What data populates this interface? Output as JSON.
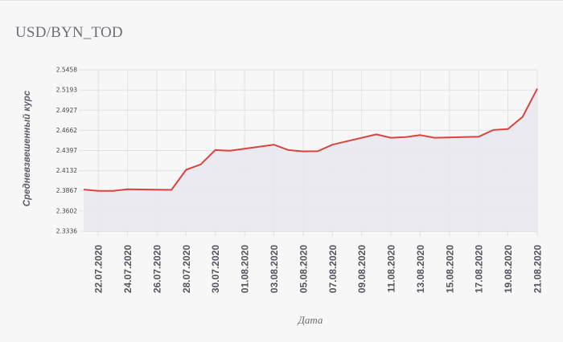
{
  "chart_data": {
    "type": "area",
    "title": "USD/BYN_TOD",
    "xlabel": "Дата",
    "ylabel": "Средневзвешенный курс",
    "ylim": [
      2.3336,
      2.5458
    ],
    "y_ticks": [
      "2.5458",
      "2.5193",
      "2.4927",
      "2.4662",
      "2.4397",
      "2.4132",
      "2.3867",
      "2.3602",
      "2.3336"
    ],
    "x_ticks": [
      "22.07.2020",
      "24.07.2020",
      "26.07.2020",
      "28.07.2020",
      "30.07.2020",
      "01.08.2020",
      "03.08.2020",
      "05.08.2020",
      "07.08.2020",
      "09.08.2020",
      "11.08.2020",
      "13.08.2020",
      "15.08.2020",
      "17.08.2020",
      "19.08.2020",
      "21.08.2020"
    ],
    "x_start": "21.07.2020",
    "x_end": "21.08.2020",
    "grid": true,
    "colors": {
      "line": "#d9443f",
      "fill": "#e8e8ee"
    },
    "series": [
      {
        "x": [
          "21.07.2020",
          "22.07.2020",
          "23.07.2020",
          "24.07.2020",
          "27.07.2020",
          "28.07.2020",
          "29.07.2020",
          "30.07.2020",
          "31.07.2020",
          "03.08.2020",
          "04.08.2020",
          "05.08.2020",
          "06.08.2020",
          "07.08.2020",
          "10.08.2020",
          "11.08.2020",
          "12.08.2020",
          "13.08.2020",
          "14.08.2020",
          "17.08.2020",
          "18.08.2020",
          "19.08.2020",
          "20.08.2020",
          "21.08.2020"
        ],
        "y": [
          2.3884,
          2.3867,
          2.3867,
          2.3887,
          2.388,
          2.4144,
          2.4214,
          2.4403,
          2.4394,
          2.4474,
          2.4403,
          2.4385,
          2.4388,
          2.4474,
          2.4609,
          2.4565,
          2.4574,
          2.46,
          2.4565,
          2.4579,
          2.4667,
          2.468,
          2.484,
          2.5211
        ]
      }
    ]
  }
}
